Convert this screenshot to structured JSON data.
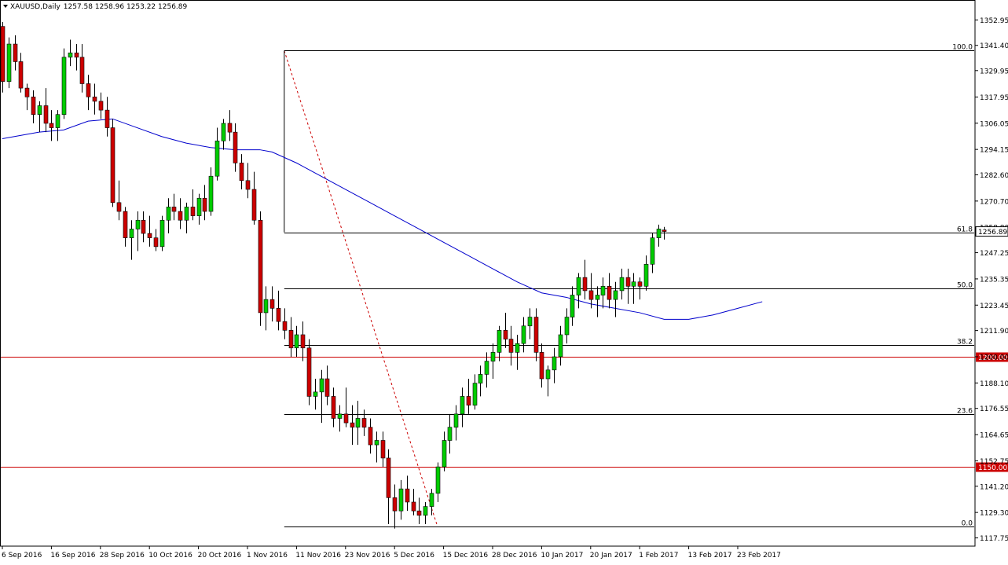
{
  "header": {
    "symbol": "XAUUSD,Daily",
    "ohlc": "1257.58 1258.96 1253.22 1256.89",
    "menu_icon": "triangle-down-icon"
  },
  "chart_data": {
    "type": "candlestick",
    "symbol": "XAUUSD",
    "timeframe": "Daily",
    "ylim": [
      1114.0,
      1362.0
    ],
    "y_ticks": [
      "1352.95",
      "1341.40",
      "1329.95",
      "1317.95",
      "1306.05",
      "1294.15",
      "1282.60",
      "1270.70",
      "1258.80",
      "1247.25",
      "1235.35",
      "1223.45",
      "1211.90",
      "1200.00",
      "1188.10",
      "1176.55",
      "1164.65",
      "1152.75",
      "1141.20",
      "1129.30",
      "1117.75"
    ],
    "x_labels": [
      {
        "label": "6 Sep 2016",
        "index": 0
      },
      {
        "label": "16 Sep 2016",
        "index": 8
      },
      {
        "label": "28 Sep 2016",
        "index": 16
      },
      {
        "label": "10 Oct 2016",
        "index": 24
      },
      {
        "label": "20 Oct 2016",
        "index": 32
      },
      {
        "label": "1 Nov 2016",
        "index": 40
      },
      {
        "label": "11 Nov 2016",
        "index": 48
      },
      {
        "label": "23 Nov 2016",
        "index": 56
      },
      {
        "label": "5 Dec 2016",
        "index": 64
      },
      {
        "label": "15 Dec 2016",
        "index": 72
      },
      {
        "label": "28 Dec 2016",
        "index": 80
      },
      {
        "label": "10 Jan 2017",
        "index": 88
      },
      {
        "label": "20 Jan 2017",
        "index": 96
      },
      {
        "label": "1 Feb 2017",
        "index": 104
      },
      {
        "label": "13 Feb 2017",
        "index": 112
      },
      {
        "label": "23 Feb 2017",
        "index": 120
      }
    ],
    "colors": {
      "up": "#00cc00",
      "down": "#cc0000",
      "wick": "#000000",
      "ma": "#0000cc",
      "level": "#cc0000",
      "fib": "#000000",
      "fib_trend": "#cc0000"
    },
    "candles": [
      [
        1350,
        1352,
        1320,
        1325
      ],
      [
        1325,
        1345,
        1322,
        1342
      ],
      [
        1342,
        1346,
        1330,
        1334
      ],
      [
        1334,
        1338,
        1320,
        1322
      ],
      [
        1322,
        1324,
        1312,
        1318
      ],
      [
        1318,
        1321,
        1306,
        1310
      ],
      [
        1310,
        1316,
        1302,
        1314
      ],
      [
        1314,
        1322,
        1302,
        1306
      ],
      [
        1306,
        1312,
        1298,
        1304
      ],
      [
        1304,
        1312,
        1298,
        1310
      ],
      [
        1310,
        1340,
        1308,
        1336
      ],
      [
        1336,
        1344,
        1332,
        1338
      ],
      [
        1338,
        1342,
        1330,
        1336
      ],
      [
        1336,
        1342,
        1320,
        1324
      ],
      [
        1324,
        1328,
        1312,
        1318
      ],
      [
        1318,
        1324,
        1310,
        1316
      ],
      [
        1316,
        1320,
        1308,
        1312
      ],
      [
        1312,
        1318,
        1300,
        1304
      ],
      [
        1304,
        1308,
        1268,
        1270
      ],
      [
        1270,
        1280,
        1262,
        1266
      ],
      [
        1266,
        1268,
        1250,
        1254
      ],
      [
        1254,
        1262,
        1244,
        1258
      ],
      [
        1258,
        1266,
        1248,
        1262
      ],
      [
        1262,
        1266,
        1252,
        1256
      ],
      [
        1256,
        1264,
        1250,
        1254
      ],
      [
        1254,
        1258,
        1248,
        1250
      ],
      [
        1250,
        1264,
        1248,
        1262
      ],
      [
        1262,
        1272,
        1256,
        1268
      ],
      [
        1268,
        1274,
        1262,
        1266
      ],
      [
        1266,
        1272,
        1258,
        1262
      ],
      [
        1262,
        1270,
        1256,
        1268
      ],
      [
        1268,
        1276,
        1262,
        1264
      ],
      [
        1264,
        1274,
        1260,
        1272
      ],
      [
        1272,
        1278,
        1262,
        1266
      ],
      [
        1266,
        1286,
        1264,
        1282
      ],
      [
        1282,
        1304,
        1280,
        1298
      ],
      [
        1298,
        1308,
        1294,
        1306
      ],
      [
        1306,
        1312,
        1298,
        1302
      ],
      [
        1302,
        1306,
        1284,
        1288
      ],
      [
        1288,
        1292,
        1276,
        1280
      ],
      [
        1280,
        1288,
        1272,
        1276
      ],
      [
        1276,
        1284,
        1260,
        1262
      ],
      [
        1262,
        1266,
        1214,
        1220
      ],
      [
        1220,
        1232,
        1212,
        1226
      ],
      [
        1226,
        1232,
        1216,
        1222
      ],
      [
        1222,
        1230,
        1212,
        1216
      ],
      [
        1216,
        1222,
        1208,
        1212
      ],
      [
        1212,
        1218,
        1200,
        1204
      ],
      [
        1204,
        1214,
        1200,
        1210
      ],
      [
        1210,
        1216,
        1198,
        1204
      ],
      [
        1204,
        1208,
        1178,
        1182
      ],
      [
        1182,
        1190,
        1176,
        1184
      ],
      [
        1184,
        1194,
        1170,
        1190
      ],
      [
        1190,
        1196,
        1178,
        1182
      ],
      [
        1182,
        1186,
        1168,
        1172
      ],
      [
        1172,
        1178,
        1166,
        1174
      ],
      [
        1174,
        1186,
        1168,
        1170
      ],
      [
        1170,
        1178,
        1160,
        1168
      ],
      [
        1168,
        1180,
        1160,
        1172
      ],
      [
        1172,
        1176,
        1164,
        1168
      ],
      [
        1168,
        1172,
        1156,
        1160
      ],
      [
        1160,
        1166,
        1152,
        1162
      ],
      [
        1162,
        1166,
        1150,
        1154
      ],
      [
        1154,
        1158,
        1124,
        1136
      ],
      [
        1136,
        1142,
        1122,
        1130
      ],
      [
        1130,
        1144,
        1126,
        1140
      ],
      [
        1140,
        1146,
        1130,
        1134
      ],
      [
        1134,
        1140,
        1128,
        1130
      ],
      [
        1130,
        1136,
        1124,
        1128
      ],
      [
        1128,
        1134,
        1124,
        1132
      ],
      [
        1132,
        1140,
        1128,
        1138
      ],
      [
        1138,
        1152,
        1134,
        1150
      ],
      [
        1150,
        1166,
        1148,
        1162
      ],
      [
        1162,
        1174,
        1156,
        1168
      ],
      [
        1168,
        1178,
        1162,
        1174
      ],
      [
        1174,
        1186,
        1168,
        1182
      ],
      [
        1182,
        1190,
        1174,
        1178
      ],
      [
        1178,
        1192,
        1176,
        1188
      ],
      [
        1188,
        1196,
        1182,
        1192
      ],
      [
        1192,
        1202,
        1186,
        1198
      ],
      [
        1198,
        1206,
        1190,
        1202
      ],
      [
        1202,
        1214,
        1198,
        1212
      ],
      [
        1212,
        1220,
        1204,
        1208
      ],
      [
        1208,
        1214,
        1196,
        1202
      ],
      [
        1202,
        1210,
        1194,
        1206
      ],
      [
        1206,
        1218,
        1202,
        1214
      ],
      [
        1214,
        1222,
        1208,
        1218
      ],
      [
        1218,
        1222,
        1198,
        1202
      ],
      [
        1202,
        1206,
        1186,
        1190
      ],
      [
        1190,
        1196,
        1182,
        1194
      ],
      [
        1194,
        1204,
        1188,
        1200
      ],
      [
        1200,
        1214,
        1196,
        1210
      ],
      [
        1210,
        1222,
        1206,
        1218
      ],
      [
        1218,
        1232,
        1214,
        1228
      ],
      [
        1228,
        1238,
        1222,
        1236
      ],
      [
        1236,
        1244,
        1226,
        1230
      ],
      [
        1230,
        1238,
        1222,
        1226
      ],
      [
        1226,
        1232,
        1218,
        1228
      ],
      [
        1228,
        1236,
        1222,
        1232
      ],
      [
        1232,
        1238,
        1222,
        1226
      ],
      [
        1226,
        1234,
        1218,
        1230
      ],
      [
        1230,
        1240,
        1226,
        1236
      ],
      [
        1236,
        1240,
        1224,
        1232
      ],
      [
        1232,
        1238,
        1224,
        1234
      ],
      [
        1234,
        1236,
        1226,
        1232
      ],
      [
        1232,
        1246,
        1230,
        1242
      ],
      [
        1242,
        1256,
        1238,
        1254
      ],
      [
        1254,
        1260,
        1250,
        1258
      ],
      [
        1257.58,
        1258.96,
        1253.22,
        1256.89
      ]
    ],
    "moving_average": [
      [
        0,
        1299
      ],
      [
        6,
        1302
      ],
      [
        10,
        1303
      ],
      [
        14,
        1307
      ],
      [
        18,
        1308
      ],
      [
        22,
        1304
      ],
      [
        26,
        1300
      ],
      [
        30,
        1297
      ],
      [
        34,
        1295
      ],
      [
        38,
        1294
      ],
      [
        42,
        1294
      ],
      [
        44,
        1293
      ],
      [
        48,
        1288
      ],
      [
        52,
        1282
      ],
      [
        56,
        1276
      ],
      [
        60,
        1270
      ],
      [
        64,
        1264
      ],
      [
        68,
        1258
      ],
      [
        72,
        1252
      ],
      [
        76,
        1246
      ],
      [
        80,
        1240
      ],
      [
        84,
        1234
      ],
      [
        88,
        1229
      ],
      [
        92,
        1227
      ],
      [
        96,
        1224
      ],
      [
        100,
        1222
      ],
      [
        104,
        1220
      ],
      [
        108,
        1217
      ],
      [
        112,
        1217
      ],
      [
        116,
        1219
      ],
      [
        120,
        1222
      ],
      [
        124,
        1225
      ]
    ],
    "horizontal_levels": [
      {
        "price": 1200.0,
        "label": "1200.00"
      },
      {
        "price": 1150.0,
        "label": "1150.00"
      }
    ],
    "fibonacci": {
      "start_index": 46,
      "start_price": 1339.0,
      "end_index": 71,
      "end_price": 1123.0,
      "levels": [
        {
          "ratio": "100.0",
          "price": 1339.0
        },
        {
          "ratio": "61.8",
          "price": 1256.5
        },
        {
          "ratio": "50.0",
          "price": 1231.0
        },
        {
          "ratio": "38.2",
          "price": 1205.5
        },
        {
          "ratio": "23.6",
          "price": 1174.0
        },
        {
          "ratio": "0.0",
          "price": 1123.0
        }
      ]
    },
    "current_price": {
      "price": 1256.89,
      "label": "1256.89"
    }
  }
}
